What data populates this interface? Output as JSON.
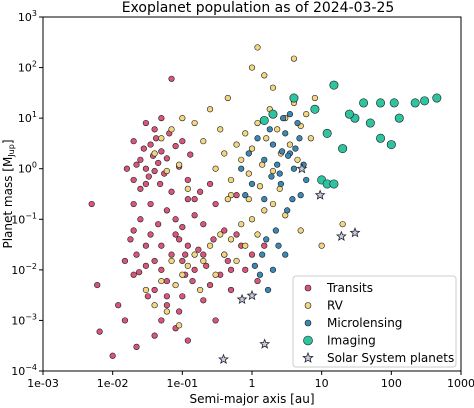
{
  "chart_data": {
    "type": "scatter",
    "title": "Exoplanet population as of 2024-03-25",
    "xlabel": "Semi-major axis [au]",
    "ylabel_main": "Planet mass [M",
    "ylabel_sub": "Jup",
    "ylabel_end": "]",
    "xscale": "log",
    "yscale": "log",
    "xlim": [
      0.001,
      1000
    ],
    "ylim": [
      0.0001,
      1000
    ],
    "x_ticks": [
      0.001,
      0.01,
      0.1,
      1,
      10,
      100,
      1000
    ],
    "x_tick_labels": [
      "1e-03",
      "1e-02",
      "1e-01",
      "1",
      "10",
      "100",
      "1000"
    ],
    "y_ticks": [
      0.0001,
      0.001,
      0.01,
      0.1,
      1,
      10,
      100,
      1000
    ],
    "y_tick_base": "10",
    "y_tick_exponents": [
      "−4",
      "−3",
      "−2",
      "−1",
      "0",
      "1",
      "2",
      "3"
    ],
    "legend_position": "lower-right",
    "series": [
      {
        "name": "Transits",
        "color": "#d9567a",
        "marker": "circle",
        "points": [
          [
            0.005,
            0.2
          ],
          [
            0.006,
            0.005
          ],
          [
            0.0065,
            0.0006
          ],
          [
            0.01,
            0.0002
          ],
          [
            0.012,
            0.002
          ],
          [
            0.015,
            0.015
          ],
          [
            0.015,
            0.001
          ],
          [
            0.018,
            0.04
          ],
          [
            0.02,
            0.008
          ],
          [
            0.022,
            0.0003
          ],
          [
            0.025,
            1.5
          ],
          [
            0.03,
            0.5
          ],
          [
            0.032,
            0.003
          ],
          [
            0.035,
            0.05
          ],
          [
            0.04,
            0.0005
          ],
          [
            0.05,
            0.01
          ],
          [
            0.05,
            0.001
          ],
          [
            0.06,
            0.002
          ],
          [
            0.08,
            0.0007
          ],
          [
            0.1,
            0.003
          ],
          [
            0.12,
            0.0004
          ],
          [
            0.3,
            0.001
          ],
          [
            0.02,
            0.2
          ],
          [
            0.02,
            0.06
          ],
          [
            0.022,
            0.02
          ],
          [
            0.025,
            0.1
          ],
          [
            0.024,
            0.009
          ],
          [
            0.03,
            0.03
          ],
          [
            0.03,
            0.012
          ],
          [
            0.035,
            0.2
          ],
          [
            0.04,
            0.015
          ],
          [
            0.04,
            0.004
          ],
          [
            0.045,
            0.08
          ],
          [
            0.05,
            0.03
          ],
          [
            0.06,
            0.006
          ],
          [
            0.07,
            0.02
          ],
          [
            0.08,
            0.05
          ],
          [
            0.1,
            0.015
          ],
          [
            0.12,
            0.03
          ],
          [
            0.15,
            0.01
          ],
          [
            0.2,
            0.02
          ],
          [
            0.25,
            0.005
          ],
          [
            0.4,
            0.02
          ],
          [
            0.5,
            0.01
          ],
          [
            0.7,
            0.03
          ],
          [
            1.0,
            0.02
          ],
          [
            0.02,
            0.6
          ],
          [
            0.022,
            1.2
          ],
          [
            0.025,
            0.4
          ],
          [
            0.028,
            2.5
          ],
          [
            0.03,
            1.0
          ],
          [
            0.033,
            0.7
          ],
          [
            0.035,
            3.0
          ],
          [
            0.038,
            1.8
          ],
          [
            0.04,
            0.9
          ],
          [
            0.042,
            4.0
          ],
          [
            0.045,
            1.3
          ],
          [
            0.048,
            0.5
          ],
          [
            0.05,
            2.2
          ],
          [
            0.055,
            0.8
          ],
          [
            0.06,
            1.6
          ],
          [
            0.065,
            5.0
          ],
          [
            0.07,
            0.35
          ],
          [
            0.08,
            2.8
          ],
          [
            0.09,
            1.1
          ],
          [
            0.1,
            3.5
          ],
          [
            0.12,
            0.6
          ],
          [
            0.13,
            1.9
          ],
          [
            0.15,
            0.25
          ],
          [
            0.05,
            10.0
          ],
          [
            0.03,
            8.0
          ],
          [
            0.04,
            6.0
          ],
          [
            0.02,
            3.5
          ],
          [
            0.016,
            1.0
          ],
          [
            0.06,
            0.15
          ],
          [
            0.08,
            0.1
          ],
          [
            0.1,
            0.07
          ],
          [
            0.12,
            0.25
          ],
          [
            0.15,
            0.12
          ],
          [
            0.18,
            0.35
          ],
          [
            0.2,
            0.08
          ],
          [
            0.25,
            0.5
          ],
          [
            0.3,
            0.2
          ],
          [
            0.4,
            0.06
          ],
          [
            0.6,
            0.3
          ],
          [
            0.09,
            0.04
          ],
          [
            0.11,
            0.02
          ],
          [
            0.14,
            0.006
          ],
          [
            0.17,
            0.025
          ],
          [
            0.22,
            0.012
          ],
          [
            0.28,
            0.04
          ],
          [
            0.35,
            0.008
          ],
          [
            0.45,
            0.015
          ],
          [
            0.6,
            0.05
          ],
          [
            0.8,
            0.01
          ],
          [
            1.2,
            0.006
          ],
          [
            1.5,
            0.03
          ],
          [
            0.07,
            60.0
          ],
          [
            0.06,
            0.003
          ],
          [
            0.09,
            0.0015
          ],
          [
            0.11,
            0.008
          ],
          [
            0.2,
            0.0025
          ],
          [
            0.5,
            0.004
          ]
        ]
      },
      {
        "name": "RV",
        "color": "#f2d680",
        "marker": "circle",
        "points": [
          [
            0.03,
            0.004
          ],
          [
            0.05,
            0.006
          ],
          [
            0.07,
            0.015
          ],
          [
            0.08,
            0.005
          ],
          [
            0.1,
            0.008
          ],
          [
            0.12,
            0.012
          ],
          [
            0.15,
            0.02
          ],
          [
            0.18,
            0.004
          ],
          [
            0.2,
            0.015
          ],
          [
            0.25,
            0.03
          ],
          [
            0.3,
            0.008
          ],
          [
            0.35,
            0.05
          ],
          [
            0.4,
            0.02
          ],
          [
            0.5,
            0.04
          ],
          [
            0.6,
            0.015
          ],
          [
            0.7,
            0.08
          ],
          [
            0.8,
            0.03
          ],
          [
            1.0,
            0.1
          ],
          [
            1.2,
            0.05
          ],
          [
            1.5,
            0.15
          ],
          [
            2.0,
            0.2
          ],
          [
            2.5,
            0.4
          ],
          [
            0.3,
            1.0
          ],
          [
            0.4,
            2.0
          ],
          [
            0.5,
            0.6
          ],
          [
            0.6,
            3.0
          ],
          [
            0.7,
            1.5
          ],
          [
            0.8,
            5.0
          ],
          [
            0.9,
            0.8
          ],
          [
            1.0,
            2.5
          ],
          [
            1.2,
            8.0
          ],
          [
            1.4,
            1.2
          ],
          [
            1.6,
            4.0
          ],
          [
            1.8,
            15.0
          ],
          [
            2.0,
            0.9
          ],
          [
            2.3,
            6.0
          ],
          [
            2.6,
            2.0
          ],
          [
            3.0,
            10.0
          ],
          [
            3.5,
            3.0
          ],
          [
            4.0,
            20.0
          ],
          [
            4.5,
            1.5
          ],
          [
            5.0,
            7.0
          ],
          [
            6.0,
            12.0
          ],
          [
            7.0,
            4.0
          ],
          [
            8.0,
            25.0
          ],
          [
            0.2,
            3.5
          ],
          [
            0.15,
            8.0
          ],
          [
            0.25,
            15.0
          ],
          [
            0.35,
            6.0
          ],
          [
            0.45,
            25.0
          ],
          [
            1.0,
            100.0
          ],
          [
            1.5,
            70.0
          ],
          [
            2.0,
            40.0
          ],
          [
            1.2,
            250.0
          ],
          [
            4.0,
            150.0
          ],
          [
            0.5,
            0.3
          ],
          [
            0.9,
            0.25
          ],
          [
            1.3,
            0.45
          ],
          [
            0.12,
            0.4
          ],
          [
            0.09,
            1.2
          ],
          [
            0.06,
            0.9
          ],
          [
            0.04,
            2.0
          ],
          [
            0.05,
            4.0
          ],
          [
            0.07,
            6.0
          ],
          [
            0.1,
            10.0
          ],
          [
            20.0,
            0.08
          ],
          [
            10.0,
            0.03
          ],
          [
            5.0,
            0.06
          ],
          [
            3.0,
            0.12
          ],
          [
            0.45,
            0.25
          ],
          [
            0.06,
            0.0015
          ],
          [
            0.04,
            0.002
          ],
          [
            0.09,
            0.0008
          ]
        ]
      },
      {
        "name": "Microlensing",
        "color": "#3c88b5",
        "marker": "circle",
        "points": [
          [
            1.0,
            0.5
          ],
          [
            1.5,
            1.5
          ],
          [
            2.0,
            3.0
          ],
          [
            2.5,
            0.8
          ],
          [
            3.0,
            5.0
          ],
          [
            3.5,
            2.0
          ],
          [
            4.0,
            1.0
          ],
          [
            4.5,
            8.0
          ],
          [
            5.0,
            0.3
          ],
          [
            2.8,
            10.0
          ],
          [
            1.8,
            6.0
          ],
          [
            1.2,
            4.0
          ],
          [
            3.2,
            0.15
          ],
          [
            2.2,
            0.06
          ],
          [
            1.6,
            0.04
          ],
          [
            1.4,
            0.02
          ],
          [
            1.1,
            0.012
          ],
          [
            1.3,
            0.008
          ],
          [
            2.0,
            0.01
          ],
          [
            1.7,
            0.004
          ],
          [
            2.4,
            0.03
          ],
          [
            3.0,
            0.02
          ],
          [
            2.6,
            0.5
          ],
          [
            3.8,
            0.25
          ],
          [
            4.2,
            2.5
          ],
          [
            5.5,
            1.2
          ],
          [
            6.0,
            0.6
          ],
          [
            0.9,
            2.0
          ],
          [
            0.7,
            1.0
          ],
          [
            0.8,
            0.3
          ],
          [
            1.5,
            0.25
          ],
          [
            3.5,
            12.0
          ],
          [
            4.8,
            4.0
          ],
          [
            2.3,
            1.2
          ],
          [
            1.9,
            0.7
          ],
          [
            2.7,
            2.2
          ],
          [
            3.3,
            1.8
          ]
        ]
      },
      {
        "name": "Imaging",
        "color": "#2ec4a0",
        "marker": "circle",
        "points": [
          [
            15.0,
            45.0
          ],
          [
            40.0,
            20.0
          ],
          [
            70.0,
            20.0
          ],
          [
            110.0,
            20.0
          ],
          [
            220.0,
            20.0
          ],
          [
            300.0,
            22.0
          ],
          [
            450.0,
            25.0
          ],
          [
            130.0,
            10.0
          ],
          [
            30.0,
            10.0
          ],
          [
            12.0,
            5.0
          ],
          [
            20.0,
            2.5
          ],
          [
            10.0,
            0.6
          ],
          [
            12.0,
            0.5
          ],
          [
            15.0,
            0.5
          ],
          [
            25.0,
            12.0
          ],
          [
            50.0,
            8.0
          ],
          [
            70.0,
            4.0
          ],
          [
            100.0,
            3.0
          ],
          [
            2.0,
            12.0
          ],
          [
            4.0,
            25.0
          ],
          [
            1.5,
            9.0
          ],
          [
            8.0,
            15.0
          ]
        ]
      },
      {
        "name": "Solar System planets",
        "color": "#c4cce8",
        "marker": "star",
        "points": [
          [
            0.39,
            0.00017
          ],
          [
            0.72,
            0.0026
          ],
          [
            1.0,
            0.0031
          ],
          [
            1.52,
            0.00034
          ],
          [
            5.2,
            1.0
          ],
          [
            9.5,
            0.3
          ],
          [
            19.2,
            0.046
          ],
          [
            30.1,
            0.054
          ]
        ]
      }
    ]
  }
}
